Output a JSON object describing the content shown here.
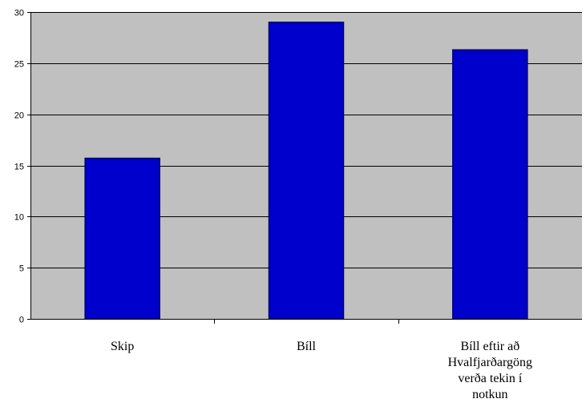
{
  "chart_data": {
    "type": "bar",
    "categories": [
      "Skip",
      "Bíll",
      "Bíll eftir að Hvalfjarðargöng verða tekin í notkun"
    ],
    "category_lines": [
      [
        "Skip"
      ],
      [
        "Bíll"
      ],
      [
        "Bíll eftir að",
        "Hvalfjarðargöng",
        "verða tekin í",
        "notkun"
      ]
    ],
    "values": [
      15.7,
      29,
      26.3
    ],
    "ylim": [
      0,
      30
    ],
    "yticks": [
      "0",
      "5",
      "10",
      "15",
      "20",
      "25",
      "30"
    ],
    "grid": true,
    "title": "",
    "xlabel": "",
    "ylabel": "",
    "colors": {
      "plot_background": "#c0c0c0",
      "bar_fill": "#0000cc",
      "bar_stroke": "#000066",
      "gridline": "#000000",
      "axis": "#000000"
    }
  }
}
